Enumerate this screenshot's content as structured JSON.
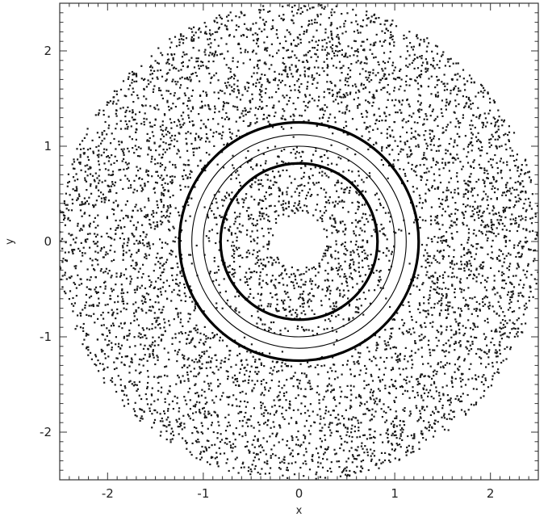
{
  "chart_data": {
    "type": "scatter",
    "title": "",
    "xlabel": "x",
    "ylabel": "y",
    "xlim": [
      -2.5,
      2.5
    ],
    "ylim": [
      -2.5,
      2.5
    ],
    "x_ticks": [
      -2,
      -1,
      0,
      1,
      2
    ],
    "y_ticks": [
      -2,
      -1,
      0,
      1,
      2
    ],
    "x_tick_labels": [
      "-2",
      "-1",
      "0",
      "1",
      "2"
    ],
    "y_tick_labels": [
      "-2",
      "-1",
      "0",
      "1",
      "2"
    ],
    "grid": false,
    "legend": "none",
    "point_color": "#1a1a1a",
    "series": [
      {
        "description_values": "random particle scatter (annular disc with central hole)",
        "point_count": 6500,
        "radial_extent": [
          0.28,
          2.52
        ]
      }
    ],
    "circles": [
      {
        "cx": 0,
        "cy": 0,
        "r": 1.25,
        "style": "thick"
      },
      {
        "cx": 0,
        "cy": 0,
        "r": 1.12,
        "style": "thin"
      },
      {
        "cx": 0,
        "cy": 0,
        "r": 1.0,
        "style": "thin"
      },
      {
        "cx": 0,
        "cy": 0,
        "r": 0.82,
        "style": "thick"
      }
    ]
  }
}
